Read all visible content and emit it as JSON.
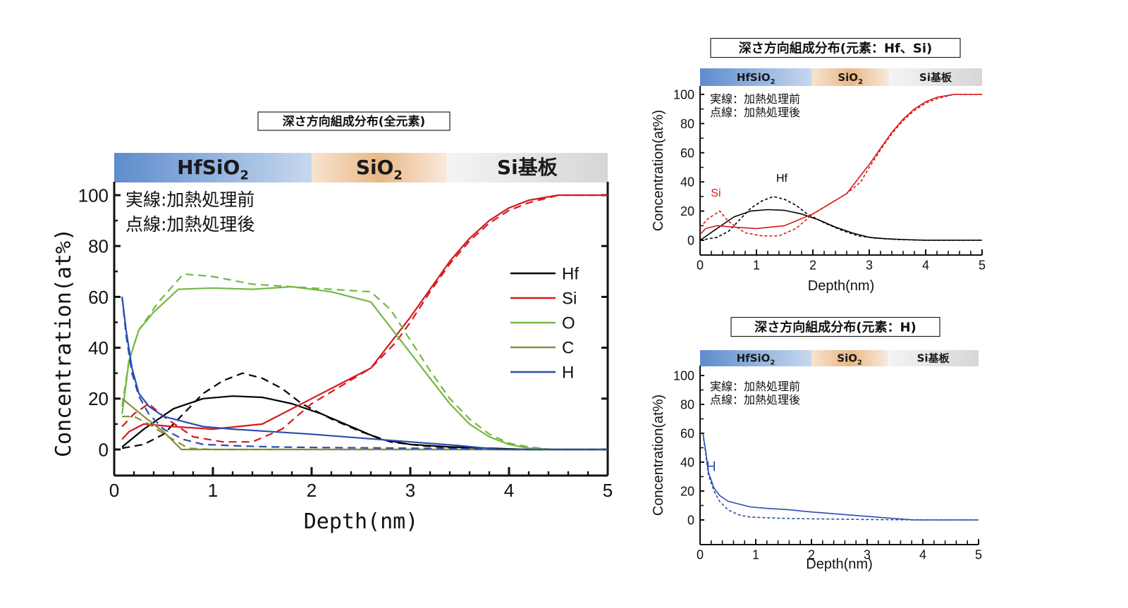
{
  "chart_data": [
    {
      "id": "main",
      "type": "line",
      "title": "深さ方向組成分布(全元素)",
      "xlabel": "Depth(nm)",
      "ylabel": "Concentration(at%)",
      "xlim": [
        0,
        5
      ],
      "ylim": [
        -10,
        100
      ],
      "xticks": [
        "0",
        "1",
        "2",
        "3",
        "4",
        "5"
      ],
      "yticks": [
        "0",
        "20",
        "40",
        "60",
        "80",
        "100"
      ],
      "layers": [
        {
          "label": "HfSiO",
          "sub": "2",
          "from": 0,
          "to": 2.0
        },
        {
          "label": "SiO",
          "sub": "2",
          "from": 2.0,
          "to": 3.37
        },
        {
          "label": "Si基板",
          "sub": "",
          "from": 3.37,
          "to": 5
        }
      ],
      "annotation": [
        "実線:加熱処理前",
        "点線:加熱処理後"
      ],
      "legend": {
        "position": "right",
        "entries": [
          "Hf",
          "Si",
          "O",
          "C",
          "H"
        ]
      },
      "series": [
        {
          "name": "Hf",
          "style": "solid",
          "color": "#000000",
          "x": [
            0.08,
            0.3,
            0.6,
            0.9,
            1.2,
            1.5,
            1.8,
            2.1,
            2.4,
            2.7,
            3.0,
            3.4,
            3.8,
            4.2,
            5.0
          ],
          "y": [
            1,
            8,
            16,
            20,
            21,
            20.5,
            18,
            14,
            9,
            4,
            2,
            1,
            0.5,
            0,
            0
          ]
        },
        {
          "name": "Hf",
          "style": "dashed",
          "color": "#000000",
          "x": [
            0.08,
            0.3,
            0.5,
            0.7,
            0.9,
            1.1,
            1.3,
            1.5,
            1.7,
            1.9,
            2.2,
            2.5,
            2.8,
            3.1,
            3.5,
            4.0,
            5.0
          ],
          "y": [
            0.5,
            2,
            6,
            14,
            22,
            27,
            30,
            28,
            24,
            18,
            12,
            7,
            3,
            1.5,
            0.5,
            0,
            0
          ]
        },
        {
          "name": "Si",
          "style": "solid",
          "color": "#d7191c",
          "x": [
            0.08,
            0.15,
            0.3,
            0.6,
            1.0,
            1.5,
            2.0,
            2.3,
            2.6,
            2.8,
            3.0,
            3.2,
            3.4,
            3.6,
            3.8,
            4.0,
            4.2,
            4.5,
            5.0
          ],
          "y": [
            4,
            7,
            10,
            9,
            8,
            10,
            20,
            26,
            32,
            42,
            52,
            63,
            74,
            83,
            90,
            95,
            98,
            100,
            100
          ]
        },
        {
          "name": "Si",
          "style": "dashed",
          "color": "#d7191c",
          "x": [
            0.08,
            0.2,
            0.35,
            0.5,
            0.8,
            1.1,
            1.4,
            1.7,
            2.0,
            2.3,
            2.6,
            2.85,
            3.0,
            3.2,
            3.4,
            3.6,
            3.8,
            4.0,
            4.2,
            4.5,
            5.0
          ],
          "y": [
            9,
            14,
            18,
            13,
            5,
            3,
            3,
            8,
            18,
            25,
            32,
            42,
            50,
            62,
            73,
            82,
            89,
            94,
            97,
            100,
            100
          ]
        },
        {
          "name": "O",
          "style": "solid",
          "color": "#74b843",
          "x": [
            0.08,
            0.15,
            0.25,
            0.4,
            0.65,
            1.0,
            1.4,
            1.8,
            2.2,
            2.6,
            2.8,
            3.0,
            3.2,
            3.4,
            3.6,
            3.8,
            4.0,
            4.2,
            4.45,
            5.0
          ],
          "y": [
            14,
            35,
            47,
            54,
            63,
            63.5,
            63,
            64,
            62,
            58,
            48,
            38,
            28,
            18,
            10,
            5,
            2,
            0.5,
            0,
            0
          ]
        },
        {
          "name": "O",
          "style": "dashed",
          "color": "#74b843",
          "x": [
            0.08,
            0.15,
            0.25,
            0.45,
            0.7,
            1.0,
            1.4,
            1.8,
            2.2,
            2.6,
            2.8,
            3.0,
            3.2,
            3.4,
            3.6,
            3.8,
            4.0,
            4.2,
            4.45,
            5.0
          ],
          "y": [
            17,
            35,
            47,
            58,
            69,
            68,
            65,
            64,
            63,
            62,
            55,
            43,
            31,
            20,
            12,
            6,
            2.5,
            1,
            0,
            0
          ]
        },
        {
          "name": "C",
          "style": "solid",
          "color": "#8c8c3c",
          "x": [
            0.08,
            0.3,
            0.5,
            0.68,
            1.0,
            5.0
          ],
          "y": [
            20,
            13,
            7,
            0,
            0,
            0
          ]
        },
        {
          "name": "C",
          "style": "dashed",
          "color": "#8c8c3c",
          "x": [
            0.08,
            0.2,
            0.35,
            0.55,
            0.75,
            1.0,
            5.0
          ],
          "y": [
            13,
            13,
            10,
            5,
            0.5,
            0,
            0
          ]
        },
        {
          "name": "H",
          "style": "solid",
          "color": "#2a4db0",
          "x": [
            0.08,
            0.12,
            0.18,
            0.25,
            0.35,
            0.5,
            0.7,
            0.9,
            1.2,
            1.6,
            2.0,
            2.5,
            3.0,
            3.5,
            3.9,
            5.0
          ],
          "y": [
            60,
            47,
            32,
            22,
            17,
            13,
            11,
            9,
            8,
            7,
            6,
            4.5,
            3,
            1.5,
            0,
            0
          ]
        },
        {
          "name": "H",
          "style": "dashed",
          "color": "#2a4db0",
          "x": [
            0.08,
            0.12,
            0.18,
            0.25,
            0.35,
            0.5,
            0.7,
            0.9,
            1.2,
            1.6,
            2.0,
            3.0,
            4.0,
            5.0
          ],
          "y": [
            60,
            45,
            30,
            21,
            14,
            8,
            4,
            2,
            1.5,
            1,
            0.8,
            0.5,
            0,
            0
          ]
        }
      ]
    },
    {
      "id": "hf_si",
      "type": "line",
      "title": "深さ方向組成分布(元素：Hf、Si)",
      "xlabel": "Depth(nm)",
      "ylabel": "Concentration(at%)",
      "xlim": [
        0,
        5
      ],
      "ylim": [
        -10,
        100
      ],
      "xticks": [
        "0",
        "1",
        "2",
        "3",
        "4",
        "5"
      ],
      "yticks": [
        "0",
        "20",
        "40",
        "60",
        "80",
        "100"
      ],
      "layers": [
        {
          "label": "HfSiO",
          "sub": "2",
          "from": 0,
          "to": 1.98
        },
        {
          "label": "SiO",
          "sub": "2",
          "from": 1.98,
          "to": 3.35
        },
        {
          "label": "Si基板",
          "sub": "",
          "from": 3.35,
          "to": 5
        }
      ],
      "annotation": [
        "実線：加熱処理前",
        "点線：加熱処理後"
      ],
      "labels": [
        {
          "text": "Si",
          "x": 0.28,
          "y": 30,
          "color": "#d7191c"
        },
        {
          "text": "Hf",
          "x": 1.45,
          "y": 40,
          "color": "#000000"
        }
      ],
      "series": [
        {
          "name": "Hf",
          "style": "solid",
          "color": "#000000",
          "x": [
            0,
            0.3,
            0.6,
            0.9,
            1.2,
            1.5,
            1.8,
            2.1,
            2.4,
            2.7,
            3.0,
            3.3,
            3.6,
            4.0,
            5.0
          ],
          "y": [
            0,
            8,
            16,
            20,
            21,
            20.5,
            18,
            14,
            9,
            5,
            2,
            1,
            0.5,
            0,
            0
          ]
        },
        {
          "name": "Hf",
          "style": "dashed",
          "color": "#000000",
          "x": [
            0,
            0.3,
            0.5,
            0.7,
            0.9,
            1.1,
            1.3,
            1.5,
            1.7,
            1.9,
            2.2,
            2.5,
            2.8,
            3.1,
            3.5,
            4.0,
            5.0
          ],
          "y": [
            0,
            2,
            6,
            14,
            22,
            27,
            30,
            28,
            24,
            18,
            12,
            7,
            3,
            1.5,
            0.5,
            0,
            0
          ]
        },
        {
          "name": "Si",
          "style": "solid",
          "color": "#d7191c",
          "x": [
            0,
            0.1,
            0.3,
            0.6,
            1.0,
            1.5,
            2.0,
            2.3,
            2.6,
            2.8,
            3.0,
            3.2,
            3.4,
            3.6,
            3.8,
            4.0,
            4.2,
            4.5,
            5.0
          ],
          "y": [
            4,
            8,
            10,
            9,
            8,
            10,
            18,
            25,
            32,
            42,
            52,
            63,
            74,
            83,
            90,
            95,
            98,
            100,
            100
          ]
        },
        {
          "name": "Si",
          "style": "dashed",
          "color": "#d7191c",
          "x": [
            0,
            0.15,
            0.35,
            0.5,
            0.8,
            1.1,
            1.4,
            1.7,
            2.0,
            2.3,
            2.6,
            2.85,
            3.0,
            3.2,
            3.4,
            3.6,
            3.8,
            4.0,
            4.2,
            4.5,
            5.0
          ],
          "y": [
            9,
            15,
            20,
            13,
            5,
            3,
            3,
            8,
            18,
            25,
            32,
            40,
            50,
            62,
            73,
            82,
            89,
            94,
            97,
            100,
            100
          ]
        }
      ]
    },
    {
      "id": "h",
      "type": "line",
      "title": "深さ方向組成分布(元素：H)",
      "xlabel": "Depth(nm)",
      "ylabel": "Concentration(at%)",
      "xlim": [
        0,
        5
      ],
      "ylim": [
        -10,
        100
      ],
      "xticks": [
        "0",
        "1",
        "2",
        "3",
        "4",
        "5"
      ],
      "yticks": [
        "0",
        "20",
        "40",
        "60",
        "80",
        "100"
      ],
      "layers": [
        {
          "label": "HfSiO",
          "sub": "2",
          "from": 0,
          "to": 2.0
        },
        {
          "label": "SiO",
          "sub": "2",
          "from": 2.0,
          "to": 3.37
        },
        {
          "label": "Si基板",
          "sub": "",
          "from": 3.37,
          "to": 5
        }
      ],
      "annotation": [
        "実線：加熱処理前",
        "点線：加熱処理後"
      ],
      "labels": [
        {
          "text": "H",
          "x": 0.2,
          "y": 34,
          "color": "#2a4db0"
        }
      ],
      "series": [
        {
          "name": "H",
          "style": "solid",
          "color": "#2a4db0",
          "x": [
            0.05,
            0.1,
            0.15,
            0.25,
            0.35,
            0.5,
            0.7,
            0.9,
            1.2,
            1.6,
            2.0,
            2.5,
            3.0,
            3.5,
            3.85,
            5.0
          ],
          "y": [
            60,
            48,
            33,
            22,
            17,
            13,
            11,
            9,
            8,
            7,
            5.5,
            4,
            2.5,
            1,
            0,
            0
          ]
        },
        {
          "name": "H",
          "style": "dashed",
          "color": "#2a4db0",
          "x": [
            0.05,
            0.1,
            0.15,
            0.25,
            0.35,
            0.5,
            0.7,
            0.9,
            1.2,
            1.6,
            2.0,
            3.0,
            4.0,
            5.0
          ],
          "y": [
            60,
            46,
            31,
            20,
            13,
            7,
            3.5,
            2,
            1.5,
            1,
            0.8,
            0.3,
            0,
            0
          ]
        }
      ]
    }
  ]
}
